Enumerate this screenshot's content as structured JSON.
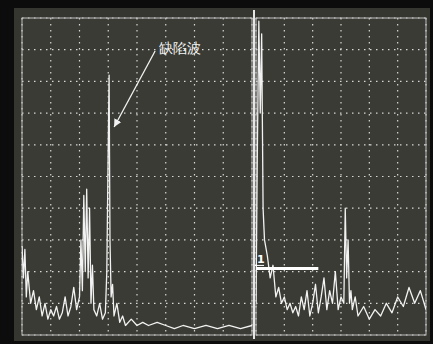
{
  "chart_data": [
    {
      "type": "line",
      "x": [
        0,
        0.5,
        1,
        1.5,
        2,
        3,
        4,
        5,
        6,
        7,
        8,
        9,
        10,
        11,
        12,
        13,
        14,
        15,
        16,
        17,
        18,
        19,
        20,
        20.5,
        21,
        21.5,
        22,
        22.5,
        23,
        23.5,
        24,
        24.5,
        25,
        26,
        27,
        28,
        29,
        29.5,
        30,
        30.3,
        30.6,
        31,
        31.5,
        32,
        33,
        34,
        35,
        36,
        38,
        40,
        42,
        44,
        47,
        50,
        53,
        56,
        60,
        64,
        68,
        72,
        76,
        80
      ],
      "series": [
        {
          "color": "#f2f2f2",
          "values": [
            28,
            18,
            27,
            12,
            20,
            10,
            14,
            8,
            12,
            6,
            10,
            5,
            8,
            6,
            9,
            5,
            7,
            12,
            6,
            9,
            15,
            8,
            12,
            30,
            14,
            44,
            20,
            46,
            18,
            40,
            10,
            22,
            8,
            6,
            10,
            5,
            7,
            20,
            60,
            82,
            30,
            12,
            16,
            6,
            10,
            4,
            6,
            3,
            5,
            3,
            4,
            3,
            4,
            3,
            2,
            3,
            2,
            3,
            2,
            3,
            2,
            3
          ]
        }
      ],
      "xlim": [
        0,
        80
      ],
      "ylim": [
        0,
        100
      ],
      "xticks": [
        0,
        10,
        20,
        30,
        40,
        50,
        60,
        70,
        80
      ],
      "yticks": [
        0,
        10,
        20,
        30,
        40,
        50,
        60,
        70,
        80,
        90,
        100
      ],
      "grid": true,
      "tick_labels": false,
      "annotations": [
        {
          "text": "缺陷波",
          "x": 30.3,
          "y": 82
        }
      ]
    },
    {
      "type": "line",
      "x": [
        0,
        0.5,
        1,
        1.5,
        2,
        2.5,
        3,
        4,
        5,
        6,
        7,
        8,
        9,
        10,
        11,
        12,
        13,
        14,
        15,
        16,
        17,
        18,
        19,
        20,
        21,
        22,
        23,
        24,
        25,
        26,
        27,
        28,
        29,
        30,
        31,
        31.5,
        32,
        32.5,
        33,
        33.5,
        34,
        35,
        36,
        38,
        40,
        42,
        44,
        46,
        48,
        50,
        52,
        54,
        56,
        58,
        60
      ],
      "series": [
        {
          "color": "#f2f2f2",
          "values": [
            10,
            60,
            99,
            70,
            95,
            40,
            30,
            25,
            18,
            22,
            12,
            15,
            10,
            12,
            8,
            10,
            7,
            9,
            6,
            12,
            8,
            14,
            6,
            10,
            16,
            7,
            12,
            18,
            8,
            14,
            10,
            20,
            8,
            12,
            10,
            40,
            18,
            30,
            10,
            14,
            8,
            12,
            6,
            9,
            5,
            8,
            6,
            10,
            7,
            12,
            9,
            15,
            10,
            14,
            8
          ]
        }
      ],
      "xlim": [
        0,
        60
      ],
      "ylim": [
        0,
        100
      ],
      "xticks": [
        0,
        10,
        20,
        30,
        40,
        50,
        60
      ],
      "yticks": [
        0,
        10,
        20,
        30,
        40,
        50,
        60,
        70,
        80,
        90,
        100
      ],
      "grid": true,
      "tick_labels": false,
      "annotations": [
        {
          "text": "1",
          "x": 0,
          "x2": 22,
          "y": 21
        }
      ]
    }
  ]
}
